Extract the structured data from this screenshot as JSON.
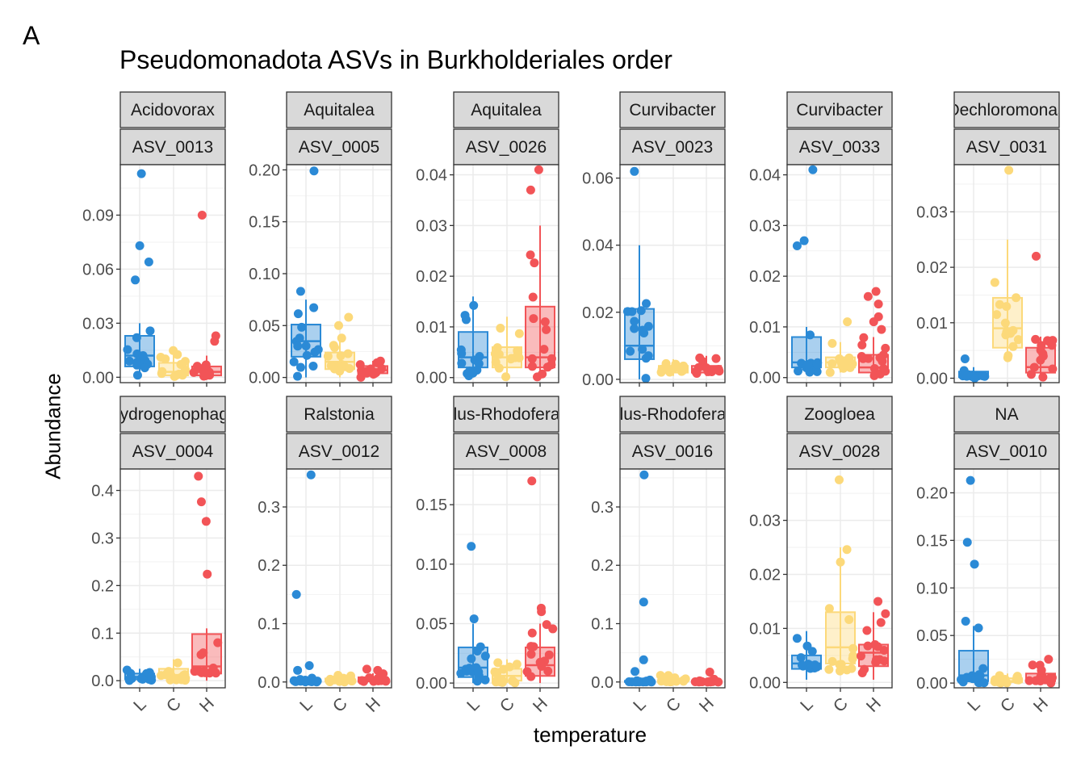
{
  "panel_label": "A",
  "chart_data": {
    "type": "boxplot",
    "title": "Pseudomonadota ASVs in Burkholderiales order",
    "xlabel": "temperature",
    "ylabel": "Abundance",
    "categories": [
      "L",
      "C",
      "H"
    ],
    "colors": {
      "L": "#2b8ad6",
      "C": "#fcd97a",
      "H": "#f25457"
    },
    "strip_fill": "#d9d9d9",
    "grid": true,
    "panels": [
      {
        "genus": "Acidovorax",
        "asv": "ASV_0013",
        "ylim": [
          -0.003,
          0.118
        ],
        "ticks": [
          0,
          0.03,
          0.06,
          0.09
        ],
        "tick_labels": [
          "0.00",
          "0.03",
          "0.06",
          "0.09"
        ],
        "boxes": {
          "L": [
            0.0,
            0.006,
            0.012,
            0.023,
            0.03
          ],
          "C": [
            0.0,
            0.001,
            0.003,
            0.008,
            0.015
          ],
          "H": [
            0.0,
            0.001,
            0.003,
            0.006,
            0.012
          ]
        },
        "outliers": {
          "L": [
            0.113,
            0.073,
            0.064,
            0.054
          ],
          "C": [],
          "H": [
            0.09,
            0.023,
            0.02
          ]
        }
      },
      {
        "genus": "Aquitalea",
        "asv": "ASV_0005",
        "ylim": [
          -0.005,
          0.205
        ],
        "ticks": [
          0,
          0.05,
          0.1,
          0.15,
          0.2
        ],
        "tick_labels": [
          "0.00",
          "0.05",
          "0.10",
          "0.15",
          "0.20"
        ],
        "boxes": {
          "L": [
            0.0,
            0.02,
            0.035,
            0.051,
            0.075
          ],
          "C": [
            0.0,
            0.008,
            0.015,
            0.024,
            0.04
          ],
          "H": [
            0.0,
            0.004,
            0.007,
            0.011,
            0.016
          ]
        },
        "outliers": {
          "L": [
            0.199,
            0.083
          ],
          "C": [
            0.058,
            0.05
          ],
          "H": []
        }
      },
      {
        "genus": "Aquitalea",
        "asv": "ASV_0026",
        "ylim": [
          -0.001,
          0.042
        ],
        "ticks": [
          0,
          0.01,
          0.02,
          0.03,
          0.04
        ],
        "tick_labels": [
          "0.00",
          "0.01",
          "0.02",
          "0.03",
          "0.04"
        ],
        "boxes": {
          "L": [
            0.0,
            0.002,
            0.004,
            0.009,
            0.016
          ],
          "C": [
            0.0,
            0.002,
            0.004,
            0.006,
            0.012
          ],
          "H": [
            0.0,
            0.002,
            0.004,
            0.014,
            0.03
          ]
        },
        "outliers": {
          "L": [],
          "C": [],
          "H": [
            0.041,
            0.037
          ]
        }
      },
      {
        "genus": "Curvibacter",
        "asv": "ASV_0023",
        "ylim": [
          -0.001,
          0.064
        ],
        "ticks": [
          0,
          0.02,
          0.04,
          0.06
        ],
        "tick_labels": [
          "0.00",
          "0.02",
          "0.04",
          "0.06"
        ],
        "boxes": {
          "L": [
            0.0,
            0.006,
            0.01,
            0.021,
            0.04
          ],
          "C": [
            0.001,
            0.002,
            0.003,
            0.004,
            0.006
          ],
          "H": [
            0.001,
            0.002,
            0.003,
            0.004,
            0.007
          ]
        },
        "outliers": {
          "L": [
            0.062
          ],
          "C": [],
          "H": []
        }
      },
      {
        "genus": "Curvibacter",
        "asv": "ASV_0033",
        "ylim": [
          -0.001,
          0.042
        ],
        "ticks": [
          0,
          0.01,
          0.02,
          0.03,
          0.04
        ],
        "tick_labels": [
          "0.00",
          "0.01",
          "0.02",
          "0.03",
          "0.04"
        ],
        "boxes": {
          "L": [
            0.001,
            0.002,
            0.003,
            0.008,
            0.01
          ],
          "C": [
            0.001,
            0.002,
            0.003,
            0.004,
            0.007
          ],
          "H": [
            0.0,
            0.001,
            0.002,
            0.0045,
            0.008
          ]
        },
        "outliers": {
          "L": [
            0.041,
            0.027,
            0.026
          ],
          "C": [
            0.011
          ],
          "H": [
            0.017,
            0.016,
            0.0145,
            0.012,
            0.011,
            0.0095
          ]
        }
      },
      {
        "genus": "Dechloromonas",
        "asv": "ASV_0031",
        "ylim": [
          -0.0008,
          0.0385
        ],
        "ticks": [
          0,
          0.01,
          0.02,
          0.03
        ],
        "tick_labels": [
          "0.00",
          "0.01",
          "0.02",
          "0.03"
        ],
        "boxes": {
          "L": [
            0.0,
            0.0002,
            0.0005,
            0.0012,
            0.002
          ],
          "C": [
            0.003,
            0.0055,
            0.009,
            0.0145,
            0.025
          ],
          "H": [
            0.0,
            0.001,
            0.002,
            0.0055,
            0.0075
          ]
        },
        "outliers": {
          "L": [
            0.0035
          ],
          "C": [
            0.0375
          ],
          "H": [
            0.022
          ]
        }
      },
      {
        "genus": "Hydrogenophaga",
        "asv": "ASV_0004",
        "ylim": [
          -0.015,
          0.445
        ],
        "ticks": [
          0,
          0.1,
          0.2,
          0.3,
          0.4
        ],
        "tick_labels": [
          "0.0",
          "0.1",
          "0.2",
          "0.3",
          "0.4"
        ],
        "boxes": {
          "L": [
            0.0,
            0.003,
            0.008,
            0.015,
            0.025
          ],
          "C": [
            0.0,
            0.005,
            0.012,
            0.025,
            0.045
          ],
          "H": [
            0.0,
            0.015,
            0.03,
            0.098,
            0.11
          ]
        },
        "outliers": {
          "L": [],
          "C": [],
          "H": [
            0.43,
            0.376,
            0.335,
            0.224
          ]
        }
      },
      {
        "genus": "Ralstonia",
        "asv": "ASV_0012",
        "ylim": [
          -0.01,
          0.365
        ],
        "ticks": [
          0,
          0.1,
          0.2,
          0.3
        ],
        "tick_labels": [
          "0.0",
          "0.1",
          "0.2",
          "0.3"
        ],
        "boxes": {
          "L": [
            0.0,
            0.001,
            0.002,
            0.004,
            0.008
          ],
          "C": [
            0.0,
            0.001,
            0.003,
            0.006,
            0.012
          ],
          "H": [
            0.0,
            0.001,
            0.003,
            0.008,
            0.015
          ]
        },
        "outliers": {
          "L": [
            0.355,
            0.15,
            0.028,
            0.02
          ],
          "C": [],
          "H": [
            0.022,
            0.02
          ]
        }
      },
      {
        "genus": "Sulfuriferula-Sulfuritortus-Thiobacillus-Rhodoferax-Aromatoleum-Uliginosibacterium",
        "asv": "ASV_0008",
        "ylim": [
          -0.004,
          0.18
        ],
        "ticks": [
          0,
          0.05,
          0.1,
          0.15
        ],
        "tick_labels": [
          "0.00",
          "0.05",
          "0.10",
          "0.15"
        ],
        "boxes": {
          "L": [
            0.0,
            0.005,
            0.013,
            0.03,
            0.05
          ],
          "C": [
            0.0,
            0.002,
            0.006,
            0.012,
            0.02
          ],
          "H": [
            0.0,
            0.006,
            0.015,
            0.03,
            0.05
          ]
        },
        "outliers": {
          "L": [
            0.115,
            0.054
          ],
          "C": [],
          "H": [
            0.17,
            0.063,
            0.06
          ]
        }
      },
      {
        "genus": "Sulfuriferula-Sulfuritortus-Thiobacillus-Rhodoferax-Aromatoleum-Uliginosibacterium",
        "asv": "ASV_0016",
        "ylim": [
          -0.01,
          0.365
        ],
        "ticks": [
          0,
          0.1,
          0.2,
          0.3
        ],
        "tick_labels": [
          "0.0",
          "0.1",
          "0.2",
          "0.3"
        ],
        "boxes": {
          "L": [
            0.0,
            0.0,
            0.0005,
            0.002,
            0.005
          ],
          "C": [
            0.0,
            0.001,
            0.003,
            0.006,
            0.012
          ],
          "H": [
            0.0,
            0.0,
            0.0005,
            0.002,
            0.005
          ]
        },
        "outliers": {
          "L": [
            0.355,
            0.137,
            0.038,
            0.018
          ],
          "C": [],
          "H": [
            0.017
          ]
        }
      },
      {
        "genus": "Zoogloea",
        "asv": "ASV_0028",
        "ylim": [
          -0.001,
          0.0395
        ],
        "ticks": [
          0,
          0.01,
          0.02,
          0.03
        ],
        "tick_labels": [
          "0.00",
          "0.01",
          "0.02",
          "0.03"
        ],
        "boxes": {
          "L": [
            0.0005,
            0.0025,
            0.0035,
            0.005,
            0.0095
          ],
          "C": [
            0.002,
            0.0035,
            0.0065,
            0.013,
            0.025
          ],
          "H": [
            0.0005,
            0.003,
            0.0055,
            0.007,
            0.013
          ]
        },
        "outliers": {
          "L": [],
          "C": [
            0.0375
          ],
          "H": [
            0.015
          ]
        }
      },
      {
        "genus": "NA",
        "asv": "ASV_0010",
        "ylim": [
          -0.005,
          0.225
        ],
        "ticks": [
          0,
          0.05,
          0.1,
          0.15,
          0.2
        ],
        "tick_labels": [
          "0.00",
          "0.05",
          "0.10",
          "0.15",
          "0.20"
        ],
        "boxes": {
          "L": [
            0.0,
            0.002,
            0.008,
            0.034,
            0.06
          ],
          "C": [
            0.0,
            0.001,
            0.002,
            0.005,
            0.01
          ],
          "H": [
            0.0,
            0.002,
            0.004,
            0.01,
            0.02
          ]
        },
        "outliers": {
          "L": [
            0.213,
            0.148,
            0.125,
            0.065
          ],
          "C": [],
          "H": [
            0.025
          ]
        }
      }
    ]
  }
}
